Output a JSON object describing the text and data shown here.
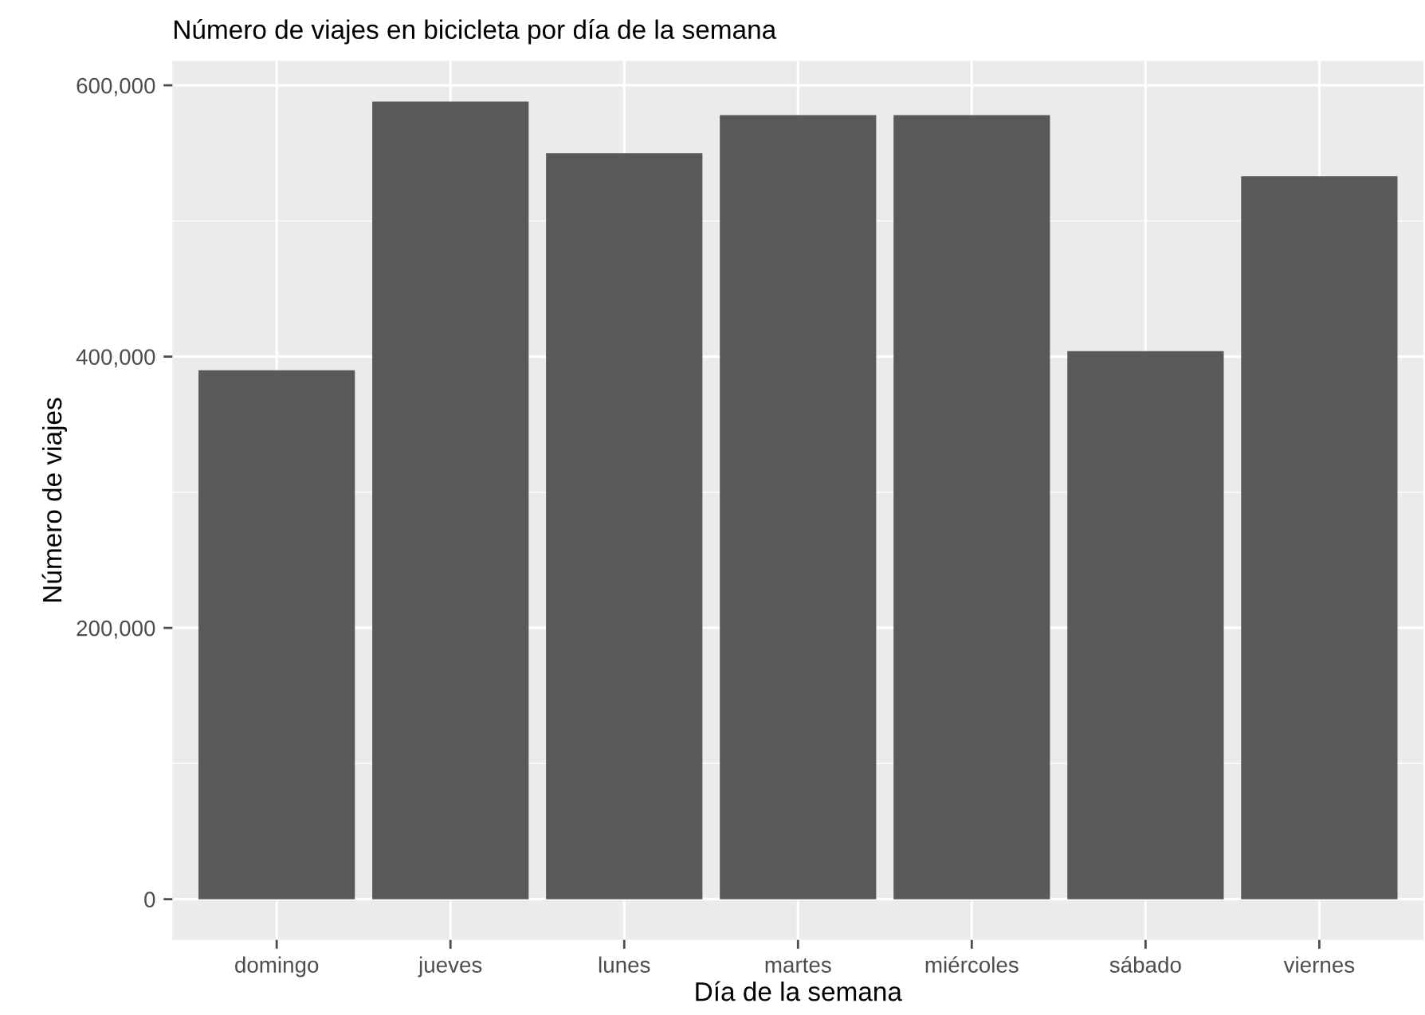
{
  "chart_data": {
    "type": "bar",
    "title": "Número de viajes en bicicleta por día de la semana",
    "xlabel": "Día de la semana",
    "ylabel": "Número de viajes",
    "categories": [
      "domingo",
      "jueves",
      "lunes",
      "martes",
      "miércoles",
      "sábado",
      "viernes"
    ],
    "values": [
      390000,
      588000,
      550000,
      578000,
      578000,
      404000,
      533000
    ],
    "color": "#595959",
    "ylim": [
      -30000,
      618000
    ],
    "yticks": [
      {
        "value": 0,
        "label": "0"
      },
      {
        "value": 200000,
        "label": "200,000"
      },
      {
        "value": 400000,
        "label": "400,000"
      },
      {
        "value": 600000,
        "label": "600,000"
      }
    ],
    "grid": true
  }
}
